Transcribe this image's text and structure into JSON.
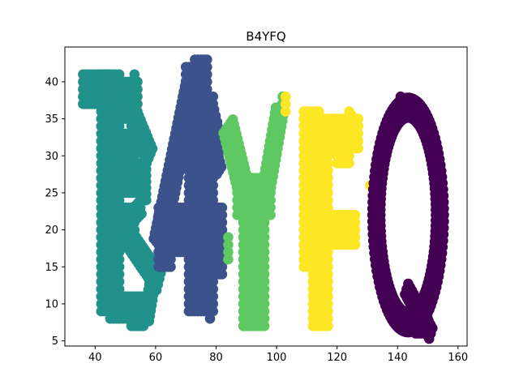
{
  "chart_data": {
    "type": "scatter",
    "title": "B4YFQ",
    "xlabel": "",
    "ylabel": "",
    "xlim": [
      30,
      163
    ],
    "ylim": [
      4.3,
      44.7
    ],
    "xticks": [
      40,
      60,
      80,
      100,
      120,
      140,
      160
    ],
    "yticks": [
      5,
      10,
      15,
      20,
      25,
      30,
      35,
      40
    ],
    "grid": false,
    "legend": "none",
    "marker_radius_data": 1.25,
    "series": [
      {
        "color": "#21918c",
        "strokes": [
          {
            "type": "rect",
            "x0": 36,
            "x1": 45,
            "y0": 37,
            "y1": 41,
            "step": 1
          },
          {
            "type": "rect",
            "x0": 42,
            "x1": 48,
            "y0": 9,
            "y1": 41,
            "step": 1
          },
          {
            "type": "rect",
            "x0": 47,
            "x1": 54,
            "y0": 35,
            "y1": 40,
            "step": 1
          },
          {
            "type": "line",
            "x0": 53,
            "y0": 35,
            "x1": 58,
            "y1": 30,
            "width": 4,
            "step": 0.8
          },
          {
            "type": "line",
            "x0": 56,
            "y0": 29,
            "x1": 56,
            "y1": 24,
            "width": 3,
            "step": 0.8
          },
          {
            "type": "line",
            "x0": 55,
            "y0": 23,
            "x1": 48,
            "y1": 20,
            "width": 3,
            "step": 0.8
          },
          {
            "type": "rect",
            "x0": 45,
            "x1": 53,
            "y0": 20,
            "y1": 23,
            "step": 1
          },
          {
            "type": "line",
            "x0": 51,
            "y0": 19,
            "x1": 61,
            "y1": 13,
            "width": 4,
            "step": 0.8
          },
          {
            "type": "line",
            "x0": 59,
            "y0": 13,
            "x1": 57,
            "y1": 8,
            "width": 3,
            "step": 0.8
          },
          {
            "type": "rect",
            "x0": 45,
            "x1": 56,
            "y0": 8,
            "y1": 11,
            "step": 1
          },
          {
            "type": "rect",
            "x0": 52,
            "x1": 56,
            "y0": 7,
            "y1": 9,
            "step": 1
          },
          {
            "type": "rect",
            "x0": 48,
            "x1": 53,
            "y0": 25,
            "y1": 33,
            "step": 1
          },
          {
            "type": "line",
            "x0": 53,
            "y0": 41,
            "x1": 53,
            "y1": 39,
            "width": 1,
            "step": 1
          }
        ]
      },
      {
        "color": "#3b528b",
        "strokes": [
          {
            "type": "line",
            "x0": 61,
            "y0": 18,
            "x1": 72,
            "y1": 40,
            "width": 5,
            "step": 0.8
          },
          {
            "type": "rect",
            "x0": 70,
            "x1": 75,
            "y0": 33,
            "y1": 42,
            "step": 1
          },
          {
            "type": "rect",
            "x0": 73,
            "x1": 77,
            "y0": 37,
            "y1": 43,
            "step": 1
          },
          {
            "type": "rect",
            "x0": 71,
            "x1": 79,
            "y0": 9,
            "y1": 38,
            "step": 1
          },
          {
            "type": "line",
            "x0": 75,
            "y0": 37,
            "x1": 81,
            "y1": 28,
            "width": 3,
            "step": 0.8
          },
          {
            "type": "rect",
            "x0": 61,
            "x1": 82,
            "y0": 17,
            "y1": 23,
            "step": 1
          },
          {
            "type": "rect",
            "x0": 61,
            "x1": 65,
            "y0": 15,
            "y1": 18,
            "step": 1
          },
          {
            "type": "rect",
            "x0": 76,
            "x1": 82,
            "y0": 14,
            "y1": 18,
            "step": 1
          },
          {
            "type": "line",
            "x0": 78,
            "y0": 13,
            "x1": 78,
            "y1": 8,
            "width": 1,
            "step": 1
          },
          {
            "type": "line",
            "x0": 79,
            "y0": 36,
            "x1": 82,
            "y1": 31,
            "width": 2,
            "step": 1
          }
        ]
      },
      {
        "color": "#5ec962",
        "strokes": [
          {
            "type": "line",
            "x0": 84,
            "y0": 34,
            "x1": 90,
            "y1": 24,
            "width": 5,
            "step": 0.8
          },
          {
            "type": "line",
            "x0": 96,
            "y0": 24,
            "x1": 101,
            "y1": 36,
            "width": 4,
            "step": 0.8
          },
          {
            "type": "rect",
            "x0": 87,
            "x1": 98,
            "y0": 22,
            "y1": 27,
            "step": 1
          },
          {
            "type": "rect",
            "x0": 89,
            "x1": 96,
            "y0": 7,
            "y1": 22,
            "step": 1
          },
          {
            "type": "line",
            "x0": 102,
            "y0": 38,
            "x1": 101,
            "y1": 33,
            "width": 1,
            "step": 1
          },
          {
            "type": "line",
            "x0": 84,
            "y0": 19,
            "x1": 84,
            "y1": 16,
            "width": 1,
            "step": 1
          }
        ]
      },
      {
        "color": "#fde725",
        "strokes": [
          {
            "type": "rect",
            "x0": 109,
            "x1": 114,
            "y0": 15,
            "y1": 36,
            "step": 1
          },
          {
            "type": "rect",
            "x0": 112,
            "x1": 117,
            "y0": 7,
            "y1": 30,
            "step": 1
          },
          {
            "type": "rect",
            "x0": 113,
            "x1": 127,
            "y0": 31,
            "y1": 35,
            "step": 1
          },
          {
            "type": "line",
            "x0": 124,
            "y0": 36,
            "x1": 127,
            "y1": 34,
            "width": 1,
            "step": 1
          },
          {
            "type": "rect",
            "x0": 120,
            "x1": 124,
            "y0": 29,
            "y1": 31,
            "step": 1
          },
          {
            "type": "rect",
            "x0": 116,
            "x1": 126,
            "y0": 18,
            "y1": 22,
            "step": 1
          },
          {
            "type": "line",
            "x0": 103,
            "y0": 38,
            "x1": 103,
            "y1": 36,
            "width": 1,
            "step": 1
          },
          {
            "type": "line",
            "x0": 131,
            "y0": 26,
            "x1": 131,
            "y1": 26,
            "width": 1,
            "step": 1
          }
        ]
      },
      {
        "color": "#440154",
        "strokes": [
          {
            "type": "ellipse",
            "cx": 143.5,
            "cy": 22,
            "rx": 10.5,
            "ry": 14.5,
            "width": 4,
            "step": 0.8
          },
          {
            "type": "line",
            "x0": 141,
            "y0": 38,
            "x1": 141,
            "y1": 36,
            "width": 1,
            "step": 1
          },
          {
            "type": "line",
            "x0": 143,
            "y0": 12,
            "x1": 151,
            "y1": 6,
            "width": 3,
            "step": 0.8
          },
          {
            "type": "rect",
            "x0": 146,
            "x1": 150,
            "y0": 6,
            "y1": 8,
            "step": 1
          }
        ]
      }
    ]
  }
}
